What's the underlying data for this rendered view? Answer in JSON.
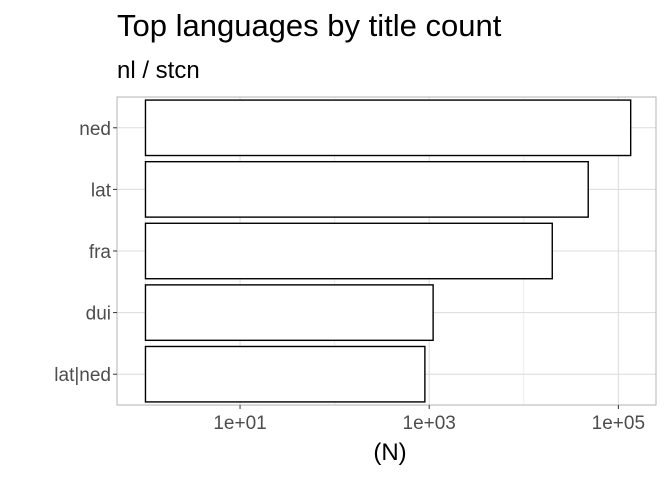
{
  "chart_data": {
    "type": "bar",
    "orientation": "horizontal",
    "title": "Top languages by title count",
    "subtitle": "nl / stcn",
    "xlabel": "(N)",
    "ylabel": "",
    "x_scale": "log10",
    "xlim": [
      0.5,
      250000
    ],
    "x_ticks": [
      10,
      1000,
      100000
    ],
    "x_tick_labels": [
      "1e+01",
      "1e+03",
      "1e+05"
    ],
    "categories": [
      "ned",
      "lat",
      "fra",
      "dui",
      "lat|ned"
    ],
    "values": [
      135000,
      48000,
      20000,
      1100,
      900
    ],
    "grid": true,
    "legend": "none",
    "bar_fill": "#ffffff",
    "bar_stroke": "#000000",
    "panel_border": "#b3b3b3",
    "grid_major_color": "#dcdcdc",
    "grid_minor_color": "#ececec"
  }
}
